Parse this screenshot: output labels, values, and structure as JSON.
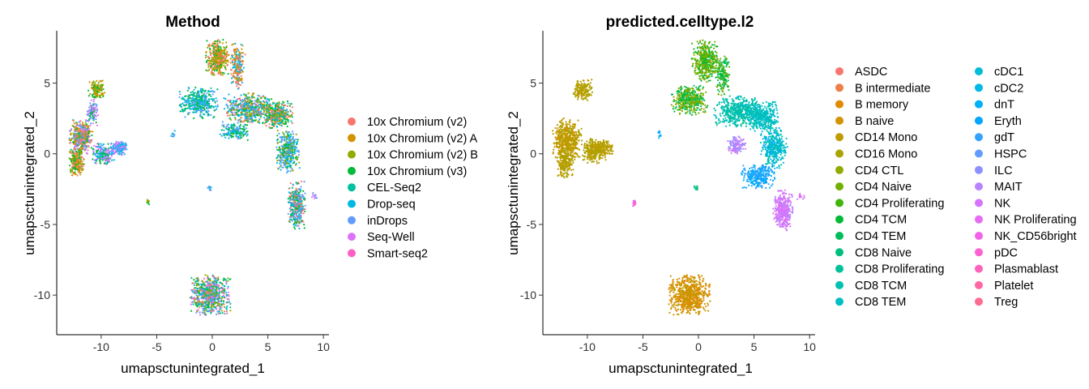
{
  "chart_data": [
    {
      "type": "scatter",
      "title": "Method",
      "xlabel": "umapsctunintegrated_1",
      "ylabel": "umapsctunintegrated_2",
      "xlim": [
        -14,
        10.5
      ],
      "ylim": [
        -12.8,
        8.7
      ],
      "x_ticks": [
        -10,
        -5,
        0,
        5,
        10
      ],
      "y_ticks": [
        -10,
        -5,
        0,
        5
      ],
      "grid": false,
      "legend_position": "right",
      "legend": [
        {
          "label": "10x Chromium (v2)",
          "color": "#F8766D"
        },
        {
          "label": "10x Chromium (v2) A",
          "color": "#D39200"
        },
        {
          "label": "10x Chromium (v2) B",
          "color": "#93AA00"
        },
        {
          "label": "10x Chromium (v3)",
          "color": "#00BA38"
        },
        {
          "label": "CEL-Seq2",
          "color": "#00C19F"
        },
        {
          "label": "Drop-seq",
          "color": "#00B9E3"
        },
        {
          "label": "inDrops",
          "color": "#619CFF"
        },
        {
          "label": "Seq-Well",
          "color": "#DB72FB"
        },
        {
          "label": "Smart-seq2",
          "color": "#FF61C3"
        }
      ],
      "clusters": [
        {
          "x": -11.8,
          "y": 1.2,
          "rx": 1.0,
          "ry": 1.1,
          "n": 420,
          "colors": [
            "#00BA38",
            "#93AA00",
            "#D39200",
            "#DB72FB",
            "#619CFF",
            "#F8766D"
          ]
        },
        {
          "x": -12.2,
          "y": -0.6,
          "rx": 0.6,
          "ry": 0.9,
          "n": 220,
          "colors": [
            "#F8766D",
            "#D39200",
            "#93AA00",
            "#00BA38"
          ]
        },
        {
          "x": -10.4,
          "y": 4.6,
          "rx": 0.7,
          "ry": 0.6,
          "n": 130,
          "colors": [
            "#93AA00",
            "#00BA38",
            "#D39200"
          ]
        },
        {
          "x": -9.8,
          "y": 0.0,
          "rx": 0.9,
          "ry": 0.7,
          "n": 200,
          "colors": [
            "#619CFF",
            "#DB72FB",
            "#00B9E3",
            "#00BA38"
          ]
        },
        {
          "x": -8.4,
          "y": 0.4,
          "rx": 0.7,
          "ry": 0.5,
          "n": 140,
          "colors": [
            "#619CFF",
            "#00B9E3",
            "#DB72FB"
          ]
        },
        {
          "x": -10.8,
          "y": 2.9,
          "rx": 0.5,
          "ry": 0.9,
          "n": 100,
          "colors": [
            "#DB72FB",
            "#619CFF",
            "#00BA38"
          ]
        },
        {
          "x": -5.8,
          "y": -3.4,
          "rx": 0.15,
          "ry": 0.2,
          "n": 15,
          "colors": [
            "#00BA38",
            "#93AA00"
          ]
        },
        {
          "x": 0.5,
          "y": 6.8,
          "rx": 1.0,
          "ry": 1.2,
          "n": 380,
          "colors": [
            "#93AA00",
            "#00BA38",
            "#D39200",
            "#F8766D"
          ]
        },
        {
          "x": 2.3,
          "y": 6.2,
          "rx": 0.6,
          "ry": 1.5,
          "n": 220,
          "colors": [
            "#F8766D",
            "#D39200",
            "#00B9E3"
          ]
        },
        {
          "x": -1.2,
          "y": 3.6,
          "rx": 1.6,
          "ry": 1.0,
          "n": 420,
          "colors": [
            "#00B9E3",
            "#619CFF",
            "#00C19F",
            "#00BA38"
          ]
        },
        {
          "x": 3.2,
          "y": 3.2,
          "rx": 2.0,
          "ry": 1.0,
          "n": 500,
          "colors": [
            "#00BA38",
            "#93AA00",
            "#00B9E3",
            "#F8766D",
            "#619CFF"
          ]
        },
        {
          "x": 5.8,
          "y": 2.8,
          "rx": 1.3,
          "ry": 0.9,
          "n": 360,
          "colors": [
            "#93AA00",
            "#00BA38",
            "#00B9E3",
            "#F8766D"
          ]
        },
        {
          "x": 6.8,
          "y": 0.2,
          "rx": 1.0,
          "ry": 1.4,
          "n": 380,
          "colors": [
            "#00BA38",
            "#00B9E3",
            "#619CFF",
            "#93AA00"
          ]
        },
        {
          "x": 7.6,
          "y": -3.6,
          "rx": 0.7,
          "ry": 1.6,
          "n": 340,
          "colors": [
            "#F8766D",
            "#00BA38",
            "#00B9E3",
            "#619CFF"
          ]
        },
        {
          "x": 2.0,
          "y": 1.6,
          "rx": 1.2,
          "ry": 0.6,
          "n": 160,
          "colors": [
            "#00B9E3",
            "#619CFF",
            "#00BA38"
          ]
        },
        {
          "x": -0.2,
          "y": -10.0,
          "rx": 1.7,
          "ry": 1.3,
          "n": 700,
          "colors": [
            "#00B9E3",
            "#00BA38",
            "#F8766D",
            "#619CFF",
            "#93AA00",
            "#00C19F",
            "#DB72FB"
          ]
        },
        {
          "x": -3.5,
          "y": 1.4,
          "rx": 0.2,
          "ry": 0.3,
          "n": 10,
          "colors": [
            "#00B9E3",
            "#619CFF"
          ]
        },
        {
          "x": -0.2,
          "y": -2.4,
          "rx": 0.2,
          "ry": 0.2,
          "n": 10,
          "colors": [
            "#00B9E3",
            "#619CFF"
          ]
        },
        {
          "x": 9.2,
          "y": -3.0,
          "rx": 0.3,
          "ry": 0.3,
          "n": 12,
          "colors": [
            "#DB72FB",
            "#619CFF"
          ]
        }
      ]
    },
    {
      "type": "scatter",
      "title": "predicted.celltype.l2",
      "xlabel": "umapsctunintegrated_1",
      "ylabel": "umapsctunintegrated_2",
      "xlim": [
        -14,
        10.5
      ],
      "ylim": [
        -12.8,
        8.7
      ],
      "x_ticks": [
        -10,
        -5,
        0,
        5,
        10
      ],
      "y_ticks": [
        -10,
        -5,
        0,
        5
      ],
      "grid": false,
      "legend_position": "right",
      "legend_columns": 2,
      "legend": [
        {
          "label": "ASDC",
          "color": "#F8766D"
        },
        {
          "label": "B intermediate",
          "color": "#EF7F48"
        },
        {
          "label": "B memory",
          "color": "#E38900"
        },
        {
          "label": "B naive",
          "color": "#D39200"
        },
        {
          "label": "CD14 Mono",
          "color": "#C09B00"
        },
        {
          "label": "CD16 Mono",
          "color": "#AAA300"
        },
        {
          "label": "CD4 CTL",
          "color": "#93AA00"
        },
        {
          "label": "CD4 Naive",
          "color": "#72B000"
        },
        {
          "label": "CD4 Proliferating",
          "color": "#40B50B"
        },
        {
          "label": "CD4 TCM",
          "color": "#00BA38"
        },
        {
          "label": "CD4 TEM",
          "color": "#00BD5C"
        },
        {
          "label": "CD8 Naive",
          "color": "#00BF7C"
        },
        {
          "label": "CD8 Proliferating",
          "color": "#00C19A"
        },
        {
          "label": "CD8 TCM",
          "color": "#00C1B2"
        },
        {
          "label": "CD8 TEM",
          "color": "#00BFC4"
        },
        {
          "label": "cDC1",
          "color": "#00BCD6"
        },
        {
          "label": "cDC2",
          "color": "#00B8E7"
        },
        {
          "label": "dnT",
          "color": "#00B0F6"
        },
        {
          "label": "Eryth",
          "color": "#00A5FF"
        },
        {
          "label": "gdT",
          "color": "#35A2FF"
        },
        {
          "label": "HSPC",
          "color": "#619CFF"
        },
        {
          "label": "ILC",
          "color": "#8D90FF"
        },
        {
          "label": "MAIT",
          "color": "#B983FF"
        },
        {
          "label": "NK",
          "color": "#D575FE"
        },
        {
          "label": "NK Proliferating",
          "color": "#E76BF3"
        },
        {
          "label": "NK_CD56bright",
          "color": "#F463E7"
        },
        {
          "label": "pDC",
          "color": "#FD61D1"
        },
        {
          "label": "Plasmablast",
          "color": "#FF62BC"
        },
        {
          "label": "Platelet",
          "color": "#FF67A4"
        },
        {
          "label": "Treg",
          "color": "#FF6C91"
        }
      ],
      "clusters": [
        {
          "x": -11.8,
          "y": 1.0,
          "rx": 1.2,
          "ry": 1.4,
          "n": 520,
          "colors": [
            "#C09B00",
            "#AAA300",
            "#D39200"
          ]
        },
        {
          "x": -12.0,
          "y": -0.7,
          "rx": 0.7,
          "ry": 0.9,
          "n": 200,
          "colors": [
            "#C09B00",
            "#AAA300"
          ]
        },
        {
          "x": -10.4,
          "y": 4.5,
          "rx": 0.8,
          "ry": 0.7,
          "n": 180,
          "colors": [
            "#C09B00",
            "#AAA300"
          ]
        },
        {
          "x": -9.4,
          "y": 0.2,
          "rx": 1.0,
          "ry": 0.8,
          "n": 260,
          "colors": [
            "#C09B00",
            "#AAA300"
          ]
        },
        {
          "x": -8.4,
          "y": 0.4,
          "rx": 0.7,
          "ry": 0.5,
          "n": 120,
          "colors": [
            "#AAA300",
            "#C09B00"
          ]
        },
        {
          "x": -5.8,
          "y": -3.5,
          "rx": 0.18,
          "ry": 0.25,
          "n": 18,
          "colors": [
            "#F463E7",
            "#FD61D1"
          ]
        },
        {
          "x": 0.6,
          "y": 6.6,
          "rx": 1.1,
          "ry": 1.4,
          "n": 440,
          "colors": [
            "#72B000",
            "#40B50B",
            "#93AA00",
            "#00BA38"
          ]
        },
        {
          "x": -0.8,
          "y": 3.8,
          "rx": 1.5,
          "ry": 1.0,
          "n": 400,
          "colors": [
            "#72B000",
            "#93AA00",
            "#00BA38",
            "#00BD5C"
          ]
        },
        {
          "x": 2.2,
          "y": 5.6,
          "rx": 0.6,
          "ry": 1.4,
          "n": 160,
          "colors": [
            "#00BA38",
            "#00BD5C",
            "#72B000"
          ]
        },
        {
          "x": 3.6,
          "y": 3.0,
          "rx": 2.0,
          "ry": 1.0,
          "n": 480,
          "colors": [
            "#00C1B2",
            "#00BFC4",
            "#00C19A"
          ]
        },
        {
          "x": 5.8,
          "y": 2.6,
          "rx": 1.4,
          "ry": 1.0,
          "n": 380,
          "colors": [
            "#00C1B2",
            "#00BFC4",
            "#00BCD6"
          ]
        },
        {
          "x": 6.8,
          "y": 0.4,
          "rx": 1.1,
          "ry": 1.3,
          "n": 360,
          "colors": [
            "#00BFC4",
            "#00C1B2",
            "#00B0F6"
          ]
        },
        {
          "x": 5.4,
          "y": -1.6,
          "rx": 1.4,
          "ry": 0.8,
          "n": 280,
          "colors": [
            "#00A5FF",
            "#00B0F6",
            "#35A2FF"
          ]
        },
        {
          "x": 7.6,
          "y": -4.0,
          "rx": 0.8,
          "ry": 1.3,
          "n": 340,
          "colors": [
            "#D575FE",
            "#E76BF3",
            "#B983FF"
          ]
        },
        {
          "x": 3.4,
          "y": 0.6,
          "rx": 0.8,
          "ry": 0.6,
          "n": 120,
          "colors": [
            "#B983FF",
            "#D575FE",
            "#8D90FF"
          ]
        },
        {
          "x": -0.8,
          "y": -10.0,
          "rx": 1.7,
          "ry": 1.3,
          "n": 700,
          "colors": [
            "#D39200",
            "#E38900",
            "#C09B00"
          ]
        },
        {
          "x": -3.5,
          "y": 1.4,
          "rx": 0.2,
          "ry": 0.3,
          "n": 10,
          "colors": [
            "#00A5FF",
            "#00B0F6"
          ]
        },
        {
          "x": -0.2,
          "y": -2.4,
          "rx": 0.2,
          "ry": 0.2,
          "n": 10,
          "colors": [
            "#00BA38",
            "#00C19A"
          ]
        },
        {
          "x": 9.2,
          "y": -3.0,
          "rx": 0.3,
          "ry": 0.3,
          "n": 12,
          "colors": [
            "#D575FE",
            "#E76BF3"
          ]
        }
      ]
    }
  ]
}
